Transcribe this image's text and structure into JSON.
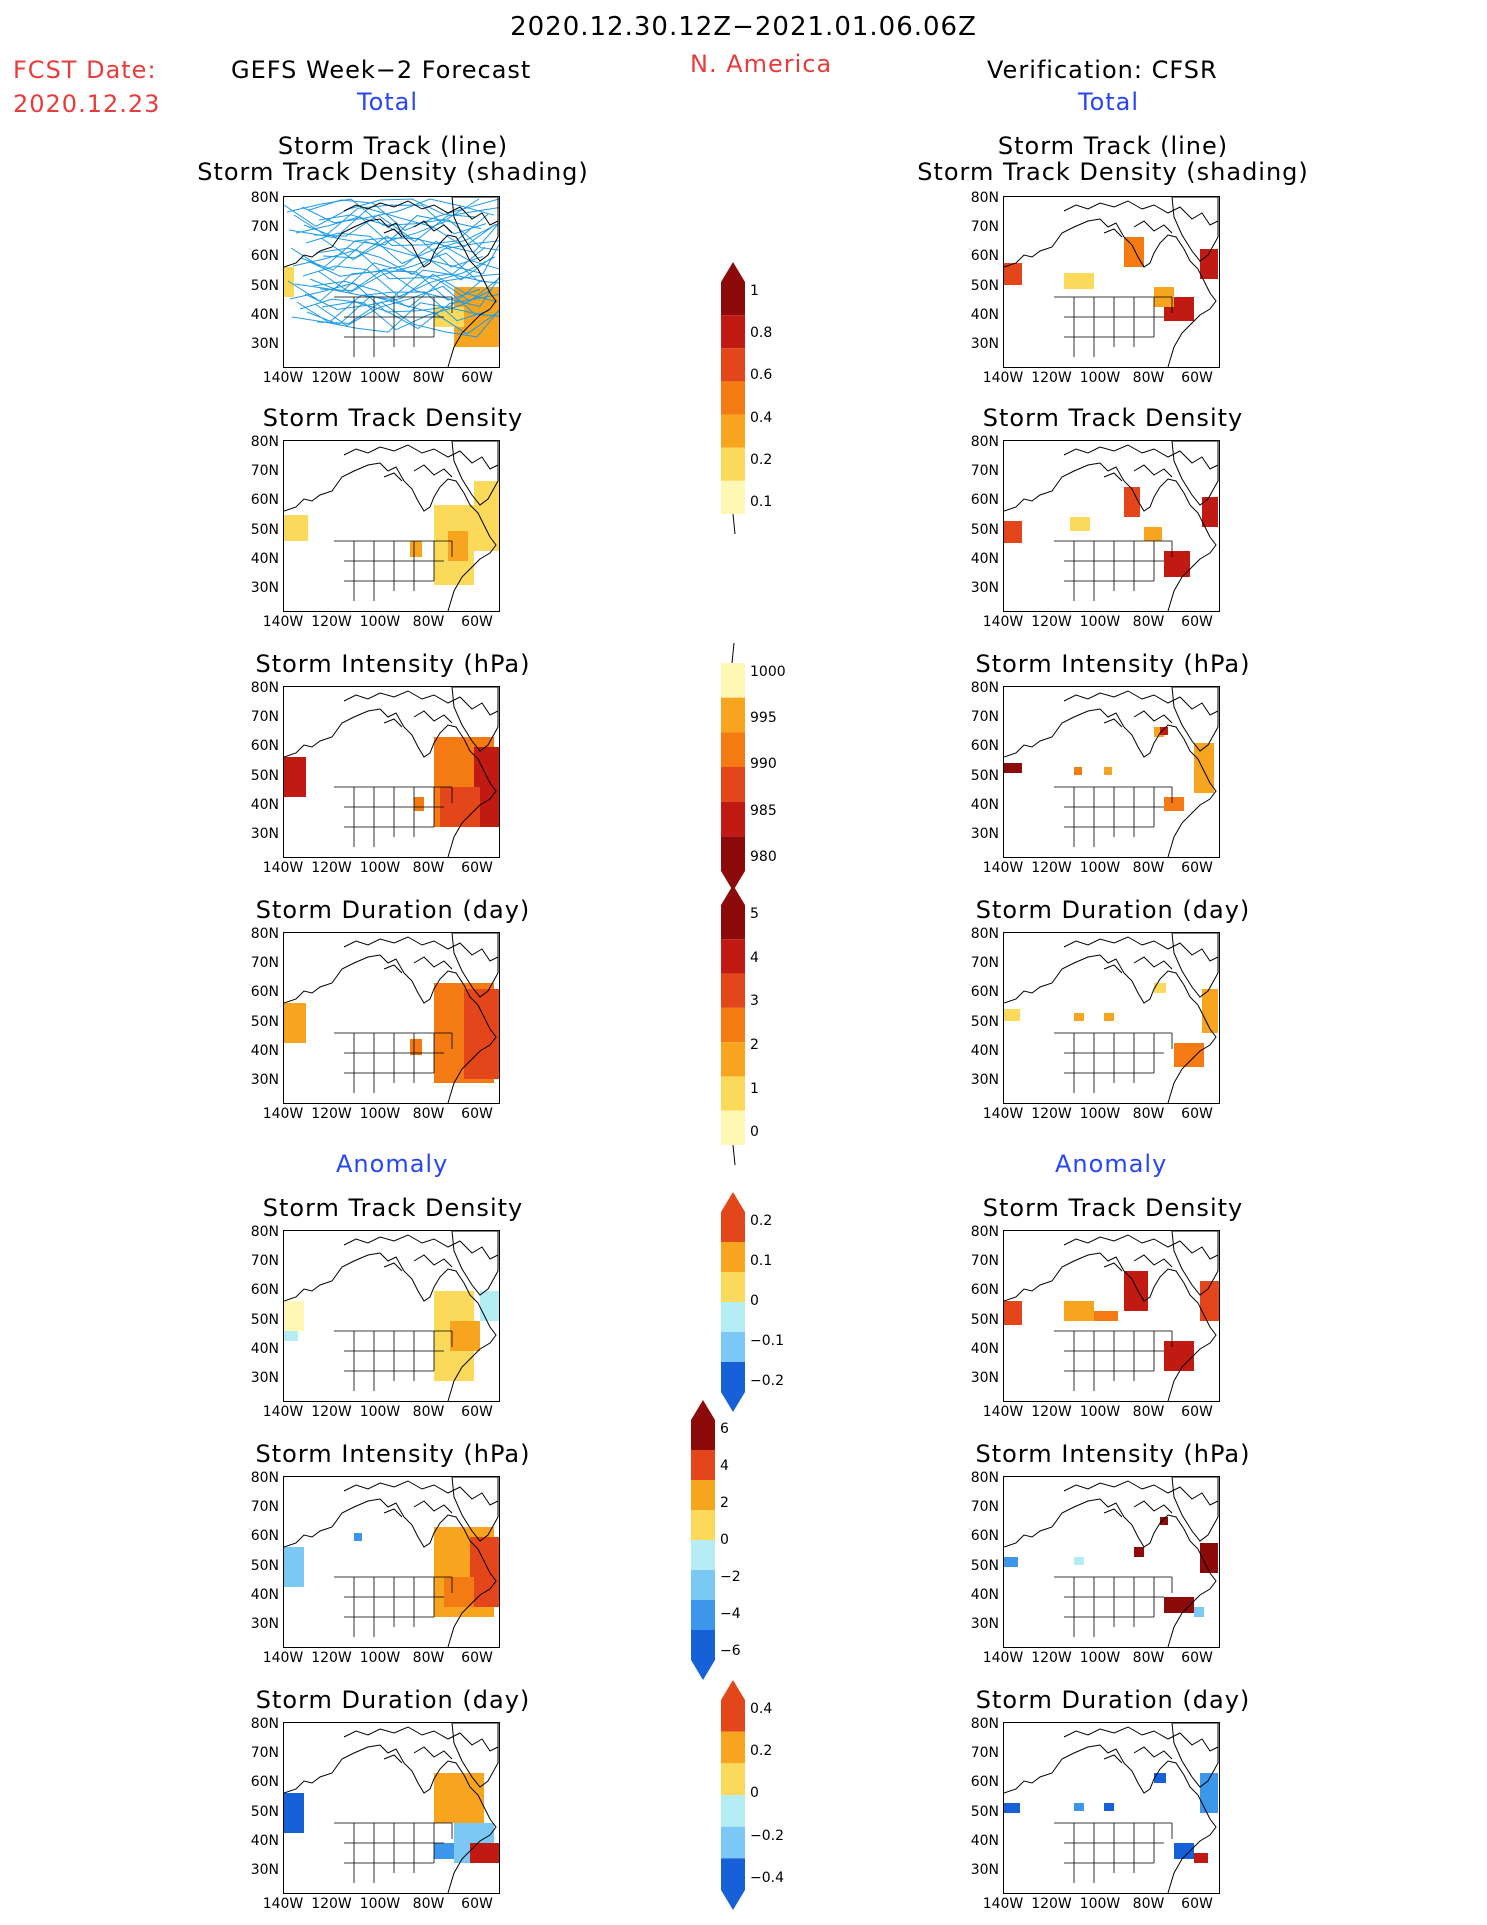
{
  "header": {
    "period": "2020.12.30.12Z−2021.01.06.06Z",
    "fcst_label": "FCST Date:",
    "fcst_date": "2020.12.23",
    "region": "N. America",
    "left_title": "GEFS Week−2 Forecast",
    "right_title": "Verification: CFSR",
    "total_label": "Total",
    "anomaly_label": "Anomaly"
  },
  "panel_titles": {
    "track_line": "Storm Track (line)",
    "track_density_shading": "Storm Track Density (shading)",
    "track_density": "Storm Track Density",
    "intensity": "Storm Intensity (hPa)",
    "duration": "Storm Duration (day)"
  },
  "axes": {
    "lat_labels": [
      "80N",
      "70N",
      "60N",
      "50N",
      "40N",
      "30N"
    ],
    "lon_labels": [
      "140W",
      "120W",
      "100W",
      "80W",
      "60W"
    ]
  },
  "colorbars": {
    "density_total": [
      "1",
      "0.8",
      "0.6",
      "0.4",
      "0.2",
      "0.1"
    ],
    "intensity_total": [
      "1000",
      "995",
      "990",
      "985",
      "980"
    ],
    "duration_total": [
      "5",
      "4",
      "3",
      "2",
      "1",
      "0"
    ],
    "density_anom": [
      "0.2",
      "0.1",
      "0",
      "−0.1",
      "−0.2"
    ],
    "intensity_anom": [
      "6",
      "4",
      "2",
      "0",
      "−2",
      "−4",
      "−6"
    ],
    "duration_anom": [
      "0.4",
      "0.2",
      "0",
      "−0.2",
      "−0.4"
    ]
  },
  "colors": {
    "red_text": "#e83c3c",
    "blue_text": "#2846f5",
    "track_line": "#1e9be6",
    "warm_scale": [
      "#fff7b4",
      "#fbd95a",
      "#f7a41e",
      "#f47a14",
      "#e2461a",
      "#c01a12",
      "#8c0a0a"
    ],
    "cool_scale": [
      "#b4eef4",
      "#7cc8f4",
      "#3c96ea",
      "#1660d8"
    ]
  }
}
